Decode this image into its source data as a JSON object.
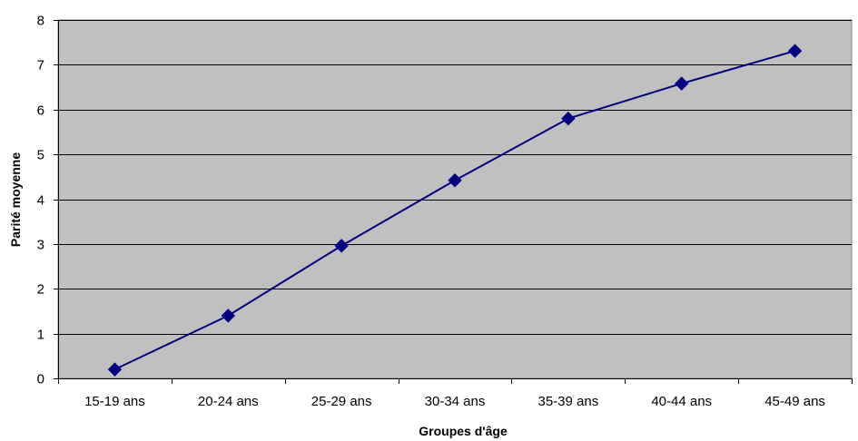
{
  "chart_data": {
    "type": "line",
    "title": "",
    "xlabel": "Groupes d'âge",
    "ylabel": "Parité moyenne",
    "categories": [
      "15-19 ans",
      "20-24 ans",
      "25-29 ans",
      "30-34 ans",
      "35-39 ans",
      "40-44 ans",
      "45-49 ans"
    ],
    "series": [
      {
        "values": [
          0.2,
          1.4,
          2.96,
          4.42,
          5.8,
          6.58,
          7.31
        ]
      }
    ],
    "ylim": [
      0,
      8
    ],
    "yticks": [
      "0",
      "1",
      "2",
      "3",
      "4",
      "5",
      "6",
      "7",
      "8"
    ],
    "grid": true,
    "legend": "none",
    "colors": {
      "plot_background": "#c0c0c0",
      "gridline": "#000000",
      "line": "#000080",
      "marker": "#000080"
    }
  }
}
